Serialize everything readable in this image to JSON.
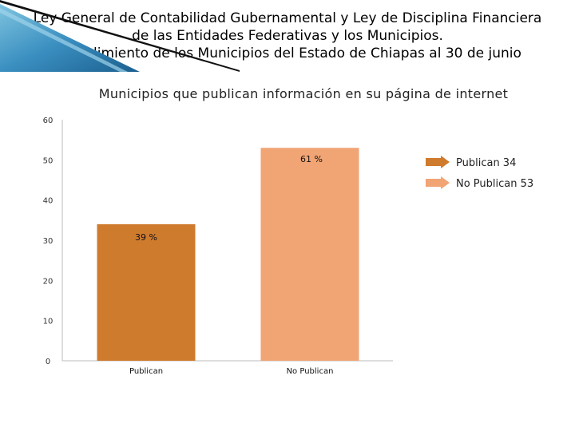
{
  "titles": {
    "line1": "Ley General de Contabilidad Gubernamental y Ley de Disciplina Financiera",
    "line2": "de las Entidades Federativas y los Municipios.",
    "line3": "Cumplimiento de los Municipios del Estado de Chiapas al 30 de junio"
  },
  "chart_data": {
    "type": "bar",
    "title": "Municipios que publican información en su página de internet",
    "categories": [
      "Publican",
      "No Publican"
    ],
    "values": [
      34,
      53
    ],
    "data_labels": [
      "39 %",
      "61 %"
    ],
    "yticks": [
      "0",
      "10",
      "20",
      "30",
      "40",
      "50",
      "60"
    ],
    "ylim": [
      0,
      60
    ],
    "colors": [
      "#cf7b2e",
      "#f1a474"
    ],
    "legend": [
      {
        "label": "Publican 34",
        "color": "#cf7b2e"
      },
      {
        "label": "No Publican 53",
        "color": "#f1a474"
      }
    ],
    "legend_position": "right",
    "grid": false
  }
}
